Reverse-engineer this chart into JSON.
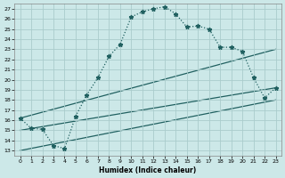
{
  "xlabel": "Humidex (Indice chaleur)",
  "bg_color": "#cce8e8",
  "grid_color": "#aacccc",
  "line_color": "#206060",
  "xlim": [
    -0.5,
    23.5
  ],
  "ylim": [
    12.5,
    27.5
  ],
  "xticks": [
    0,
    1,
    2,
    3,
    4,
    5,
    6,
    7,
    8,
    9,
    10,
    11,
    12,
    13,
    14,
    15,
    16,
    17,
    18,
    19,
    20,
    21,
    22,
    23
  ],
  "yticks": [
    13,
    14,
    15,
    16,
    17,
    18,
    19,
    20,
    21,
    22,
    23,
    24,
    25,
    26,
    27
  ],
  "curve_x": [
    0,
    1,
    2,
    3,
    4,
    5,
    6,
    7,
    8,
    9,
    10,
    11,
    12,
    13,
    14,
    15,
    16,
    17,
    18,
    19,
    20,
    21,
    22,
    23
  ],
  "curve_y": [
    16.2,
    15.2,
    15.1,
    13.5,
    13.2,
    16.4,
    18.5,
    20.2,
    22.3,
    23.5,
    26.2,
    26.7,
    27.0,
    27.2,
    26.5,
    25.2,
    25.3,
    25.0,
    23.2,
    23.2,
    22.8,
    20.2,
    18.2,
    19.2
  ],
  "trend1_x": [
    0,
    23
  ],
  "trend1_y": [
    16.2,
    23.0
  ],
  "trend2_x": [
    0,
    23
  ],
  "trend2_y": [
    15.0,
    19.2
  ],
  "trend3_x": [
    0,
    23
  ],
  "trend3_y": [
    13.0,
    18.0
  ]
}
